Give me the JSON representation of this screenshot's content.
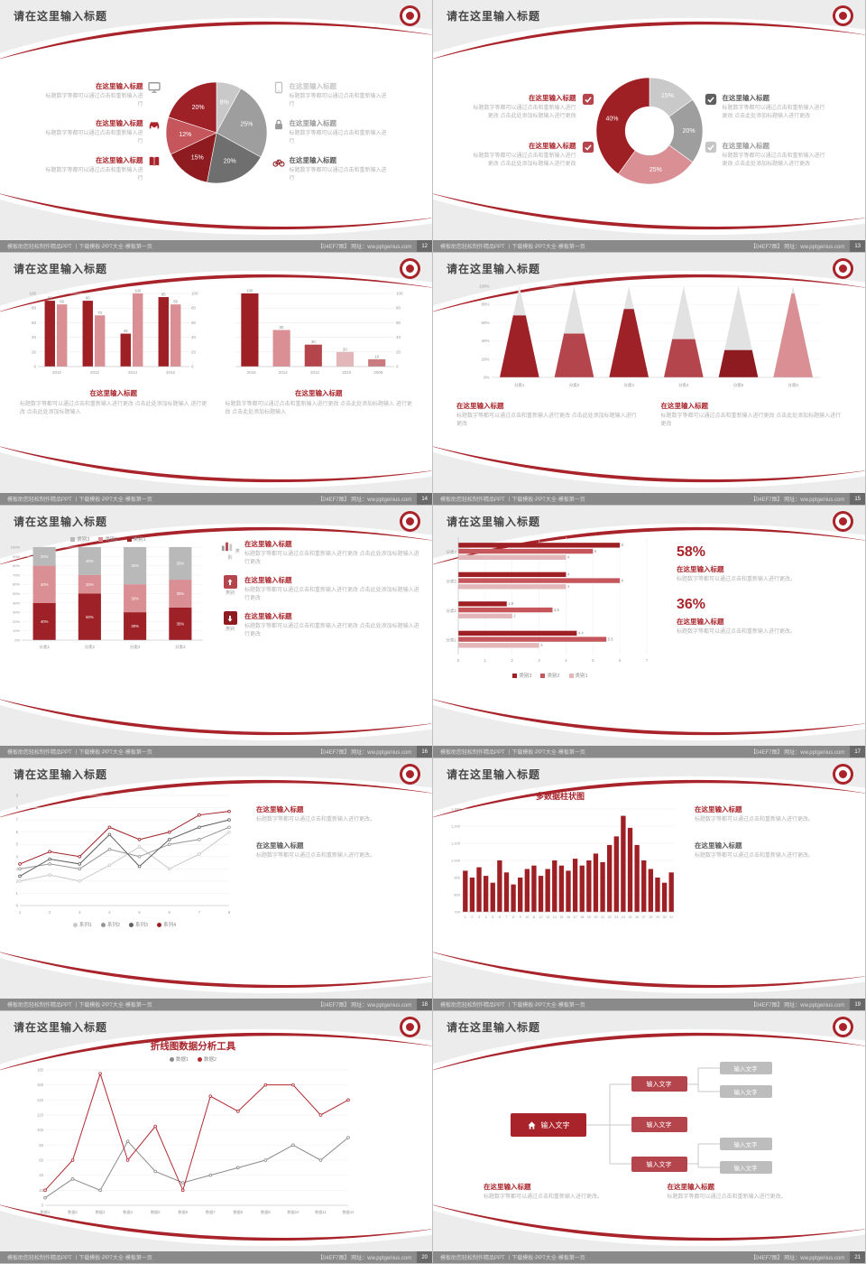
{
  "common": {
    "slide_title": "请在这里输入标题",
    "item_title": "在这里输入标题",
    "para": "标题数字等都可以通过点击和重新输入进行",
    "para_change": "标题数字等都可以通过点击和重新输入进行更改",
    "para_dot": "标题数字等都可以通过点击和重新输入进行更改。",
    "para_add": "标题数字等都可以通过点击和重新输入进行更改 点击此处添加标题输入进行更改",
    "para_add2": "标题数字等都可以通过点击和重新输入进行更改 点击此处添加标题输入 进行更改 点击此处添加标题输入"
  },
  "footer": {
    "left": "模板助您轻松制作精品PPT 丨下载模板·PPT大全·模板第一页",
    "right": "【04EF7图】 网址：ww.pptgenius.com"
  },
  "slides": {
    "s12": {
      "page": "12"
    },
    "s13": {
      "page": "13"
    },
    "s14": {
      "page": "14"
    },
    "s15": {
      "page": "15"
    },
    "s16": {
      "page": "16",
      "icon_caption": "类别"
    },
    "s17": {
      "page": "17",
      "stat1": "58%",
      "stat2": "36%"
    },
    "s18": {
      "page": "18"
    },
    "s19": {
      "page": "19",
      "chart_title": "多数据柱状图"
    },
    "s20": {
      "page": "20",
      "chart_title": "折线图数据分析工具"
    },
    "s21": {
      "page": "21",
      "node_label": "输入文字"
    }
  },
  "chart_data": [
    {
      "type": "pie",
      "values": [
        8,
        25,
        20,
        15,
        12,
        20
      ],
      "labels": [
        "8%",
        "25%",
        "20%",
        "15%",
        "12%",
        "20%"
      ],
      "colors": [
        "#c9c9c9",
        "#9e9e9e",
        "#6f6f6f",
        "#8e1b20",
        "#c4565c",
        "#9e2127"
      ]
    },
    {
      "type": "donut",
      "values": [
        15,
        20,
        25,
        40
      ],
      "labels": [
        "15%",
        "20%",
        "25%",
        "40%"
      ],
      "colors": [
        "#c9c9c9",
        "#9e9e9e",
        "#d98f94",
        "#9e1f24"
      ]
    },
    {
      "type": "bar",
      "categories": [
        "2010",
        "2012",
        "2014",
        "2016"
      ],
      "series": [
        {
          "name": "系列1",
          "color": "#9e1f24",
          "values": [
            90,
            90,
            45,
            95
          ]
        },
        {
          "name": "系列2",
          "color": "#d98f94",
          "values": [
            85,
            70,
            100,
            85
          ]
        }
      ],
      "ylim": [
        0,
        100
      ],
      "yticks": [
        0,
        20,
        40,
        60,
        80,
        100
      ],
      "value_labels": true,
      "right_axis": true
    },
    {
      "type": "bar",
      "categories": [
        "2016",
        "2014",
        "2012",
        "2010",
        "2008"
      ],
      "series": [
        {
          "name": "数据",
          "color": "#9e1f24",
          "values": [
            100,
            50,
            30,
            20,
            10
          ]
        }
      ],
      "bar_colors": [
        "#9e1f24",
        "#d98f94",
        "#b5454c",
        "#e3b6b9",
        "#c97b80"
      ],
      "ylim": [
        0,
        100
      ],
      "yticks": [
        0,
        20,
        40,
        60,
        80,
        100
      ],
      "value_labels": true,
      "right_axis": true,
      "left_axis": false
    },
    {
      "type": "cone",
      "categories": [
        "分类1",
        "分类2",
        "分类3",
        "分类4",
        "分类5",
        "分类6"
      ],
      "values": [
        68,
        48,
        75,
        42,
        30,
        92
      ],
      "colors": [
        "#9e2127",
        "#b5454c",
        "#9e2127",
        "#b5454c",
        "#8e1b20",
        "#d98f94"
      ],
      "yticks": [
        "0%",
        "20%",
        "40%",
        "60%",
        "80%",
        "100%"
      ]
    },
    {
      "type": "stacked",
      "categories": [
        "分类1",
        "分类2",
        "分类3",
        "分类4"
      ],
      "series": [
        {
          "name": "类别1",
          "color": "#9e2127",
          "values": [
            40,
            50,
            30,
            35
          ]
        },
        {
          "name": "类别2",
          "color": "#d98f94",
          "values": [
            40,
            20,
            30,
            30
          ]
        },
        {
          "name": "类别3",
          "color": "#b9b9b9",
          "values": [
            20,
            30,
            40,
            35
          ]
        }
      ],
      "legend": [
        {
          "name": "类别3",
          "color": "#b9b9b9"
        },
        {
          "name": "类别2",
          "color": "#d98f94"
        },
        {
          "name": "类别1",
          "color": "#9e2127"
        }
      ],
      "yticks": [
        "0%",
        "10%",
        "20%",
        "30%",
        "40%",
        "50%",
        "60%",
        "70%",
        "80%",
        "90%",
        "100%"
      ]
    },
    {
      "type": "hbar",
      "categories": [
        "分类4",
        "分类3",
        "分类2",
        "分类1"
      ],
      "series": [
        {
          "name": "类别3",
          "color": "#9e1f24",
          "values": [
            6,
            4,
            1.8,
            4.4
          ]
        },
        {
          "name": "类别2",
          "color": "#c4565c",
          "values": [
            5,
            6,
            3.5,
            5.5
          ]
        },
        {
          "name": "类别1",
          "color": "#e3b6b9",
          "values": [
            4,
            4,
            2,
            3
          ]
        }
      ],
      "extra_values": [
        2.4,
        4.3
      ],
      "xlim": [
        0,
        7
      ],
      "xticks": [
        0,
        1,
        2,
        3,
        4,
        5,
        6,
        7
      ],
      "legend": [
        {
          "name": "类别3",
          "color": "#9e1f24"
        },
        {
          "name": "类别2",
          "color": "#c4565c"
        },
        {
          "name": "类别1",
          "color": "#e3b6b9"
        }
      ]
    },
    {
      "type": "line",
      "x": [
        1,
        2,
        3,
        4,
        5,
        6,
        7,
        8
      ],
      "ylim": [
        0,
        9
      ],
      "yticks": [
        0,
        1,
        2,
        3,
        4,
        5,
        6,
        7,
        8,
        9
      ],
      "series": [
        {
          "name": "系列1",
          "color": "#c9c9c9",
          "values": [
            2,
            2.5,
            2,
            3.3,
            4.8,
            3,
            4.2,
            6
          ]
        },
        {
          "name": "系列2",
          "color": "#969696",
          "values": [
            3,
            3.4,
            3,
            4.6,
            4,
            5,
            5.4,
            6.4
          ]
        },
        {
          "name": "系列3",
          "color": "#5f5f5f",
          "values": [
            2.4,
            3.8,
            3.4,
            5.8,
            3.2,
            5.4,
            6.4,
            7
          ]
        },
        {
          "name": "系列4",
          "color": "#9e1f24",
          "values": [
            3.4,
            4.4,
            4,
            6.4,
            5.4,
            6,
            7.4,
            7.7
          ]
        }
      ]
    },
    {
      "type": "column",
      "x": [
        1,
        2,
        3,
        4,
        5,
        6,
        7,
        8,
        9,
        10,
        11,
        12,
        13,
        14,
        15,
        16,
        17,
        18,
        19,
        20,
        21,
        22,
        23,
        24,
        25,
        26,
        27,
        28,
        29,
        30,
        31
      ],
      "values": [
        940,
        900,
        960,
        910,
        870,
        1000,
        930,
        860,
        900,
        950,
        970,
        910,
        950,
        1000,
        970,
        940,
        1010,
        970,
        1000,
        1040,
        990,
        1090,
        1140,
        1260,
        1190,
        1090,
        1000,
        950,
        900,
        870,
        930
      ],
      "color": "#9e1f24",
      "ylim": [
        700,
        1300
      ],
      "yticks": [
        "700",
        "800",
        "900",
        "1,000",
        "1,100",
        "1,200",
        "1,300"
      ]
    },
    {
      "type": "line",
      "x_labels": [
        "数据1",
        "数据2",
        "数据3",
        "数据4",
        "数据5",
        "数据6",
        "数据7",
        "数据8",
        "数据9",
        "数据10",
        "数据11",
        "数据12"
      ],
      "ylim": [
        3,
        183
      ],
      "yticks": [
        "3",
        "23",
        "43",
        "63",
        "83",
        "103",
        "123",
        "143",
        "163",
        "183"
      ],
      "series": [
        {
          "name": "数据1",
          "color": "#8a8a8a",
          "values": [
            13,
            38,
            23,
            88,
            48,
            33,
            43,
            53,
            63,
            83,
            63,
            93
          ]
        },
        {
          "name": "数据2",
          "color": "#b02a30",
          "values": [
            23,
            63,
            178,
            63,
            108,
            23,
            148,
            128,
            163,
            163,
            123,
            143
          ]
        }
      ]
    }
  ]
}
